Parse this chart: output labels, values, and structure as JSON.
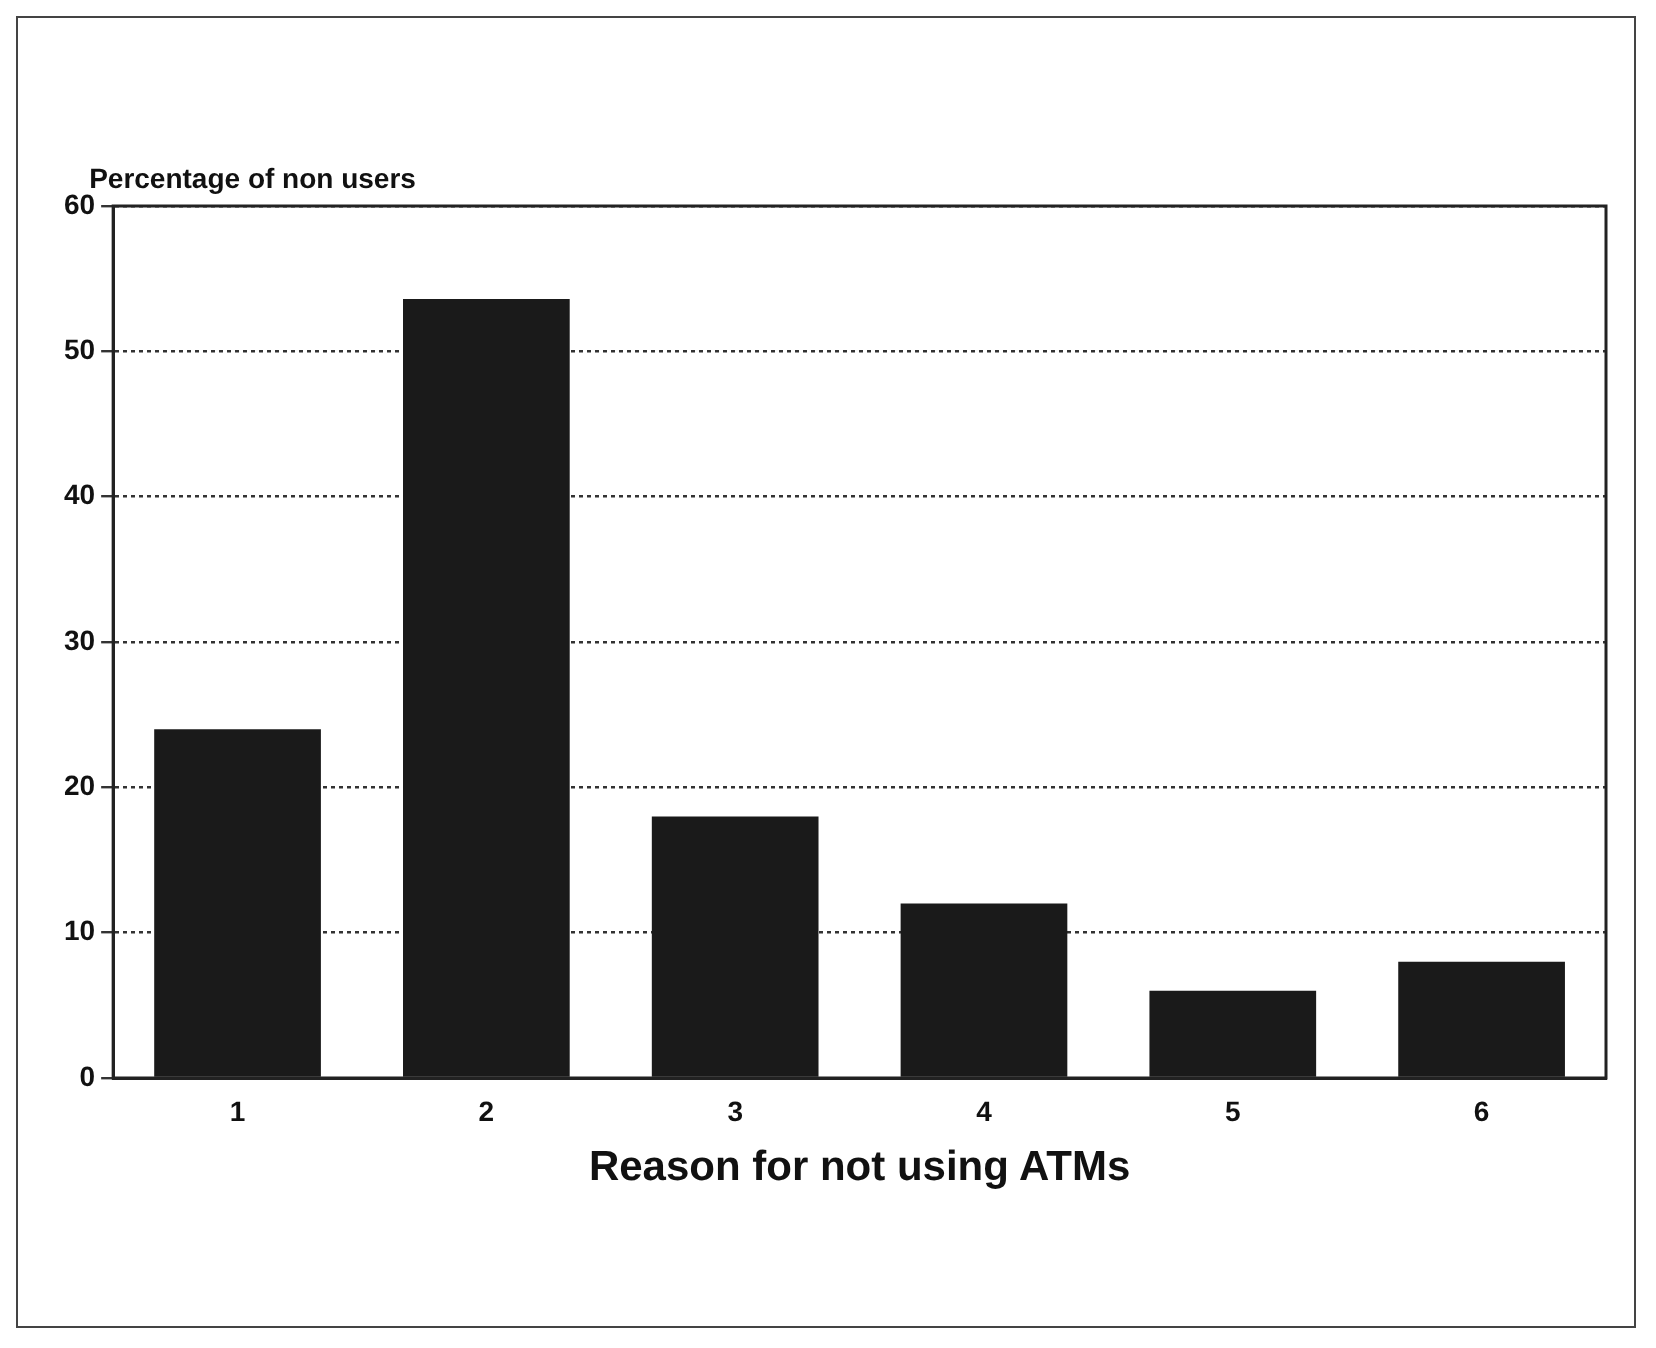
{
  "chart_data": {
    "type": "bar",
    "ylabel": "Percentage of non users",
    "xlabel": "Reason for not using ATMs",
    "categories": [
      "1",
      "2",
      "3",
      "4",
      "5",
      "6"
    ],
    "values": [
      24,
      53.6,
      18,
      12,
      6,
      8
    ],
    "color": "#1a1a1a",
    "ylim": [
      0,
      60
    ],
    "yticks": [
      0,
      10,
      20,
      30,
      40,
      50,
      60
    ],
    "grid": "y",
    "legend": false
  }
}
